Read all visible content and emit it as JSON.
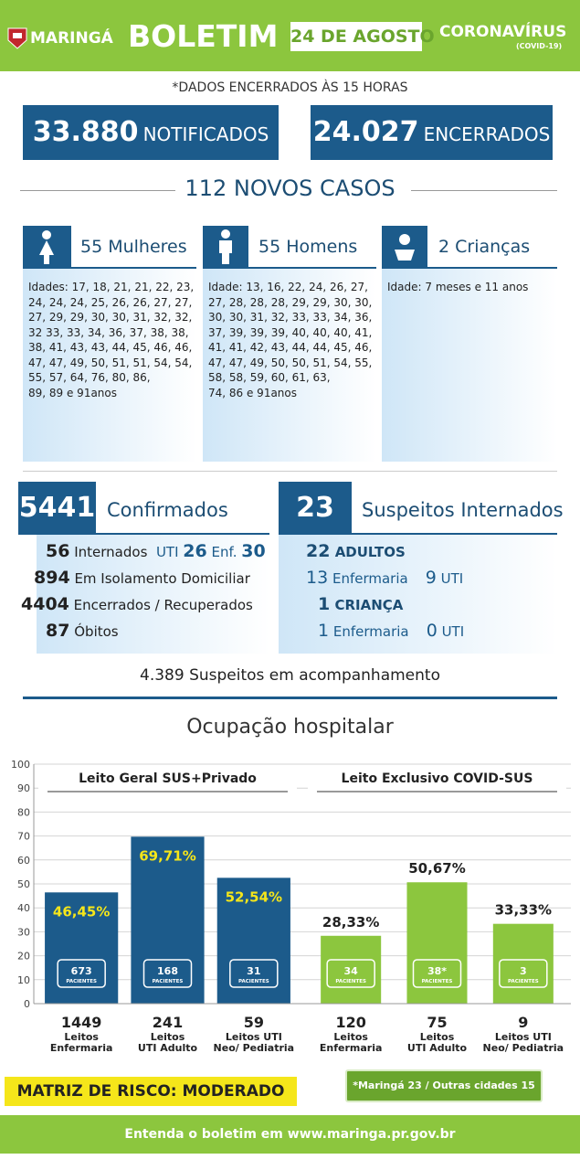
{
  "header": {
    "city": "MARINGÁ",
    "title": "BOLETIM",
    "date": "24 DE AGOSTO",
    "topic": "CORONAVÍRUS",
    "topic_sub": "(COVID-19)"
  },
  "note": "*DADOS ENCERRADOS ÀS 15 HORAS",
  "totals": [
    {
      "value": "33.880",
      "label": "NOTIFICADOS"
    },
    {
      "value": "24.027",
      "label": "ENCERRADOS"
    }
  ],
  "new_cases": "112 NOVOS CASOS",
  "groups": [
    {
      "title": "55 Mulheres",
      "ages": [
        "Idades: 17, 18, 21, 21, 22, 23,",
        "24, 24, 24, 25, 26, 26, 27, 27,",
        "27, 29, 29, 30, 30, 31, 32, 32,",
        "32 33, 33, 34, 36, 37, 38, 38,",
        "38, 41, 43, 43, 44, 45, 46, 46,",
        "47, 47, 49, 50, 51, 51, 54, 54,",
        "55, 57, 64, 76, 80, 86,",
        "89, 89 e 91anos"
      ]
    },
    {
      "title": "55 Homens",
      "ages": [
        "Idade: 13, 16, 22, 24, 26, 27,",
        "27, 28, 28, 28, 29, 29, 30, 30,",
        "30, 30, 31, 32, 33, 33, 34, 36,",
        "37, 39, 39, 39, 40, 40, 40, 41,",
        "41, 41, 42, 43, 44, 44, 45, 46,",
        "47, 47, 49, 50, 50, 51, 54, 55,",
        "58, 58, 59, 60, 61, 63,",
        "74, 86 e 91anos"
      ]
    },
    {
      "title": "2 Crianças",
      "ages": [
        "Idade: 7 meses e 11 anos"
      ]
    }
  ],
  "confirmed": {
    "value": "5441",
    "label": "Confirmados",
    "rows": [
      [
        "56",
        "Internados",
        "UTI",
        "26",
        "Enf.",
        "30"
      ],
      [
        "894",
        "Em Isolamento Domiciliar"
      ],
      [
        "4404",
        "Encerrados / Recuperados"
      ],
      [
        "87",
        "Óbitos"
      ]
    ]
  },
  "suspects": {
    "value": "23",
    "label": "Suspeitos Internados",
    "rows": [
      [
        "22",
        "ADULTOS"
      ],
      [
        "13",
        "Enfermaria",
        "9",
        "UTI"
      ],
      [
        "1",
        "CRIANÇA"
      ],
      [
        "1",
        "Enfermaria",
        "0",
        "UTI"
      ]
    ]
  },
  "monitoring": "4.389 Suspeitos em acompanhamento",
  "chart_title": "Ocupação hospitalar",
  "chart_data": {
    "type": "bar",
    "ylim": [
      0,
      100
    ],
    "yticks": [
      0,
      10,
      20,
      30,
      40,
      50,
      60,
      70,
      80,
      90,
      100
    ],
    "grid": true,
    "patients_label": "PACIENTES",
    "groups": [
      {
        "title": "Leito Geral SUS+Privado",
        "color": "#1c5b8b",
        "label_color": "#f5e61a",
        "values": [
          46.45,
          69.71,
          52.54
        ],
        "value_labels": [
          "46,45%",
          "69,71%",
          "52,54%"
        ],
        "patients": [
          "673",
          "168",
          "31"
        ],
        "beds": [
          "1449",
          "241",
          "59"
        ],
        "categories": [
          [
            "Leitos",
            "Enfermaria"
          ],
          [
            "Leitos",
            "UTI Adulto"
          ],
          [
            "Leitos UTI",
            "Neo/ Pediatria"
          ]
        ]
      },
      {
        "title": "Leito Exclusivo COVID-SUS",
        "color": "#8cc63e",
        "label_color": "#222222",
        "values": [
          28.33,
          50.67,
          33.33
        ],
        "value_labels": [
          "28,33%",
          "50,67%",
          "33,33%"
        ],
        "patients": [
          "34",
          "38*",
          "3"
        ],
        "beds": [
          "120",
          "75",
          "9"
        ],
        "categories": [
          [
            "Leitos",
            "Enfermaria"
          ],
          [
            "Leitos",
            "UTI Adulto"
          ],
          [
            "Leitos UTI",
            "Neo/ Pediatria"
          ]
        ]
      }
    ]
  },
  "risk": "MATRIZ DE RISCO: MODERADO",
  "footnote": "*Maringá 23 / Outras cidades 15",
  "footer": "Entenda o boletim em www.maringa.pr.gov.br"
}
